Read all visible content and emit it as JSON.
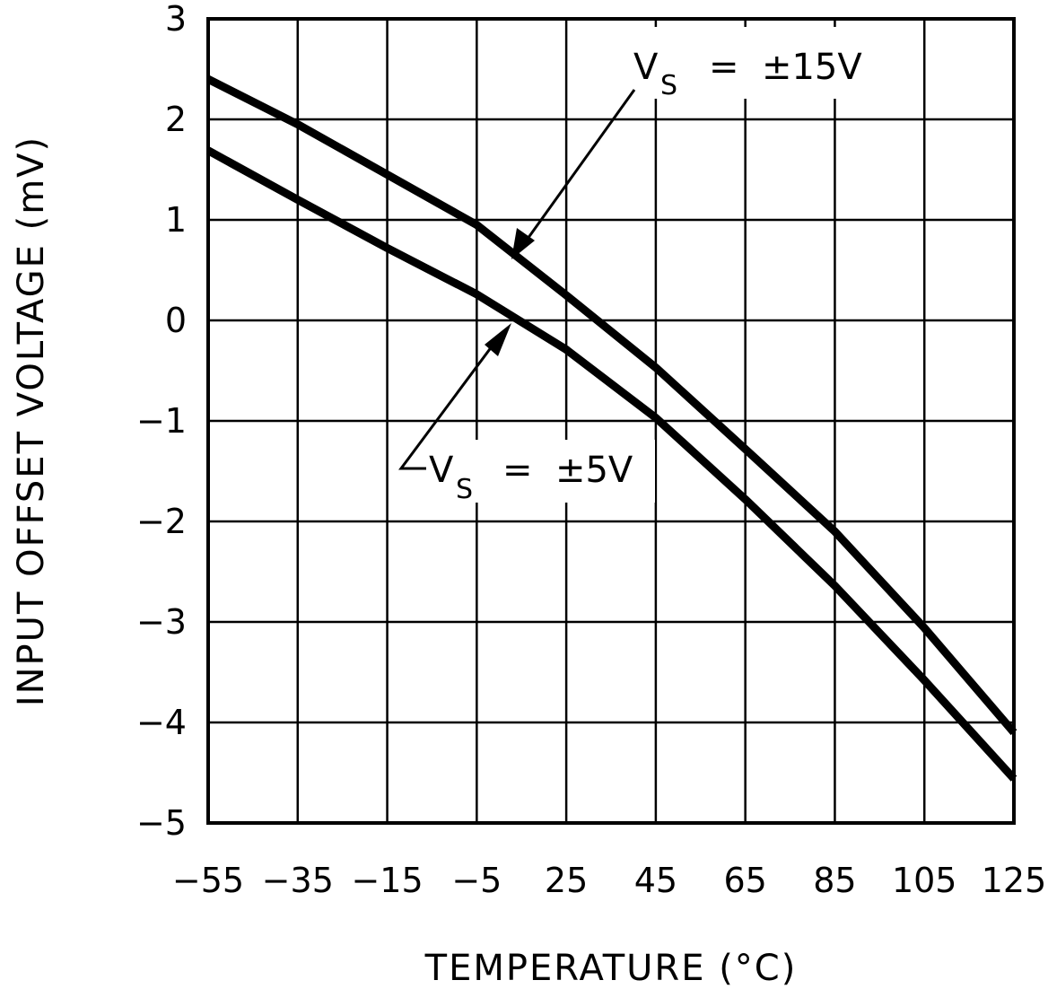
{
  "chart_data": {
    "type": "line",
    "title": "",
    "xlabel": "TEMPERATURE (°C)",
    "ylabel": "INPUT OFFSET VOLTAGE (mV)",
    "x_tick_labels": [
      "-55",
      "-35",
      "-15",
      "-5",
      "25",
      "45",
      "65",
      "85",
      "105",
      "125"
    ],
    "y_tick_labels": [
      "3",
      "2",
      "1",
      "0",
      "-1",
      "-2",
      "-3",
      "-4",
      "-5"
    ],
    "ylim": [
      -5,
      3
    ],
    "grid": true,
    "legend_position": "inline annotations with arrows",
    "x": [
      -55,
      -35,
      -15,
      -5,
      25,
      45,
      65,
      85,
      105,
      125
    ],
    "series": [
      {
        "name": "VS = ±15V",
        "values": [
          2.4,
          1.95,
          1.45,
          0.95,
          0.25,
          -0.47,
          -1.28,
          -2.1,
          -3.06,
          -4.1
        ]
      },
      {
        "name": "VS = ±5V",
        "values": [
          1.69,
          1.2,
          0.72,
          0.26,
          -0.29,
          -0.97,
          -1.78,
          -2.64,
          -3.58,
          -4.56
        ]
      }
    ],
    "annotations": [
      {
        "text": "VS = ±15V",
        "main": "V",
        "sub": "S",
        "rest": " =  ±15V"
      },
      {
        "text": "VS = ±5V",
        "main": "V",
        "sub": "S",
        "rest": " =  ±5V"
      }
    ]
  },
  "labels": {
    "xlabel": "TEMPERATURE (°C)",
    "ylabel": "INPUT OFFSET VOLTAGE (mV)",
    "annot15_main": "V",
    "annot15_sub": "S",
    "annot15_rest": "=  ±15V",
    "annot5_main": "V",
    "annot5_sub": "S",
    "annot5_rest": "=  ±5V"
  }
}
